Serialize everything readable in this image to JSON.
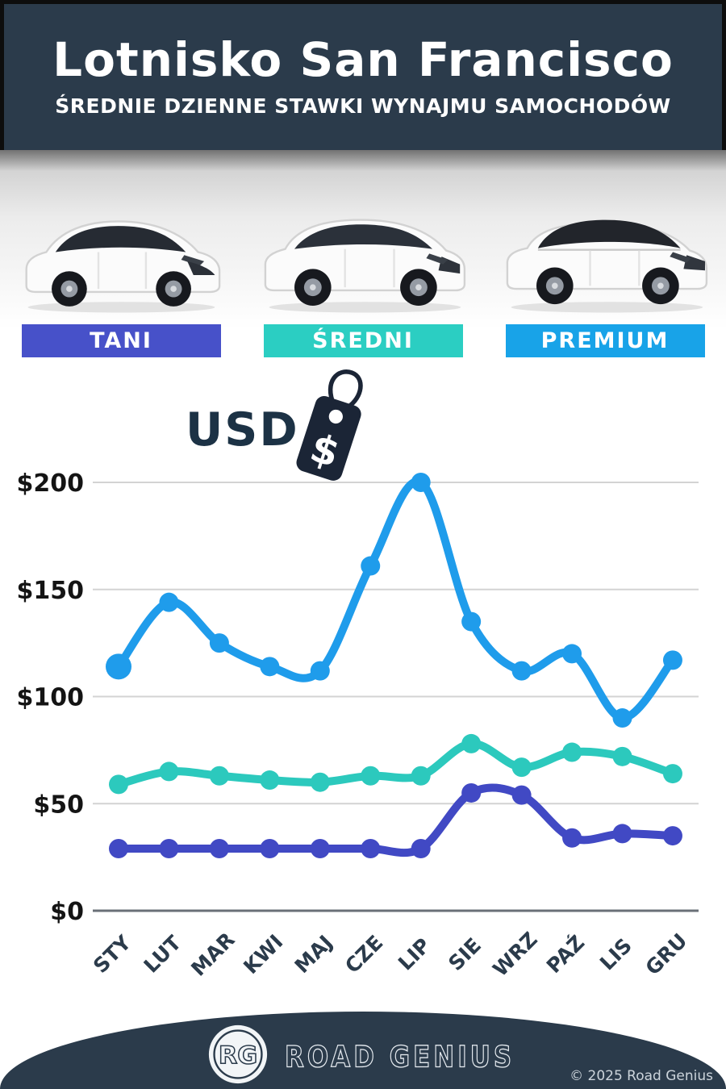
{
  "header": {
    "title": "Lotnisko San Francisco",
    "subtitle": "ŚREDNIE DZIENNE STAWKI WYNAJMU SAMOCHODÓW",
    "background_color": "#2b3b4b"
  },
  "categories": [
    {
      "key": "tani",
      "label": "TANI",
      "color": "#4751c9"
    },
    {
      "key": "sredni",
      "label": "ŚREDNI",
      "color": "#2bcec2"
    },
    {
      "key": "premium",
      "label": "PREMIUM",
      "color": "#18a3e8"
    }
  ],
  "currency": {
    "label": "USD",
    "tag_symbol": "$",
    "tag_color": "#1b2536"
  },
  "chart_data": {
    "type": "line",
    "categories": [
      "STY",
      "LUT",
      "MAR",
      "KWI",
      "MAJ",
      "CZE",
      "LIP",
      "SIE",
      "WRZ",
      "PAŹ",
      "LIS",
      "GRU"
    ],
    "series": [
      {
        "key": "premium",
        "name": "PREMIUM",
        "color": "#1f9ceb",
        "values": [
          114,
          144,
          125,
          114,
          112,
          161,
          200,
          135,
          112,
          120,
          90,
          117
        ]
      },
      {
        "key": "sredni",
        "name": "ŚREDNI",
        "color": "#2cc9bd",
        "values": [
          59,
          65,
          63,
          61,
          60,
          63,
          63,
          78,
          67,
          74,
          72,
          64
        ]
      },
      {
        "key": "tani",
        "name": "TANI",
        "color": "#4149c4",
        "values": [
          29,
          29,
          29,
          29,
          29,
          29,
          29,
          55,
          54,
          34,
          36,
          35
        ]
      }
    ],
    "ylabel": "USD",
    "yticks": [
      "$0",
      "$50",
      "$100",
      "$150",
      "$200"
    ],
    "ylim": [
      0,
      200
    ],
    "grid": true,
    "legend_position": "none"
  },
  "footer": {
    "logo_initials": "RG",
    "brand": "ROAD GENIUS",
    "copyright": "© 2025 Road Genius"
  }
}
